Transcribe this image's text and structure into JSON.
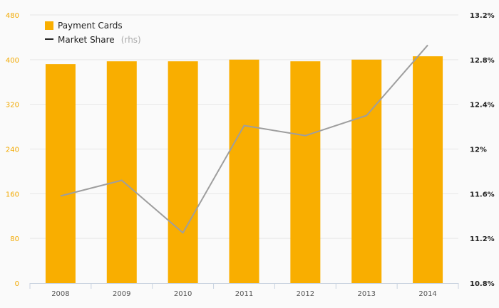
{
  "colors": {
    "bar": "#f9ae00",
    "line": "#9e9e9e",
    "left_axis_text": "#f2a900",
    "right_axis_text": "#222222",
    "grid": "#e6e6e6",
    "axis": "#c9d3e0"
  },
  "legend": {
    "bars_label": "Payment Cards",
    "line_label": "Market Share",
    "line_suffix": "(rhs)",
    "placement": "top-left"
  },
  "chart_data": {
    "type": "bar",
    "categories": [
      "2008",
      "2009",
      "2010",
      "2011",
      "2012",
      "2013",
      "2014"
    ],
    "series": [
      {
        "name": "Payment Cards",
        "type": "bar",
        "axis": "left",
        "values": [
          392,
          397,
          397,
          400,
          397,
          400,
          406
        ]
      },
      {
        "name": "Market Share",
        "type": "line",
        "axis": "right",
        "values": [
          11.58,
          11.72,
          11.25,
          12.21,
          12.12,
          12.3,
          12.93
        ]
      }
    ],
    "left_axis": {
      "ylim": [
        0,
        480
      ],
      "ticks": [
        0,
        80,
        160,
        240,
        320,
        400,
        480
      ],
      "tick_labels": [
        "0",
        "80",
        "160",
        "240",
        "320",
        "400",
        "480"
      ]
    },
    "right_axis": {
      "ylim": [
        10.8,
        13.2
      ],
      "ticks": [
        10.8,
        11.2,
        11.6,
        12.0,
        12.4,
        12.8,
        13.2
      ],
      "tick_labels": [
        "10.8%",
        "11.2%",
        "11.6%",
        "12%",
        "12.4%",
        "12.8%",
        "13.2%"
      ]
    },
    "grid": true
  }
}
